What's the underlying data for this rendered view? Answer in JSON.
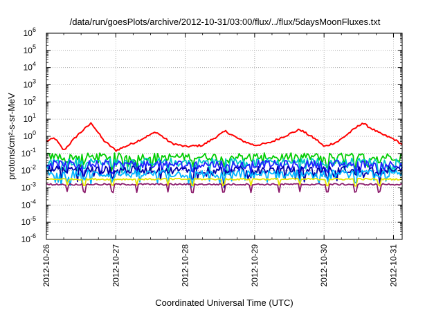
{
  "chart_data": {
    "type": "line",
    "title": "/data/run/goesPlots/archive/2012-10-31/03:00/flux/../flux/5daysMoonFluxes.txt",
    "xlabel": "Coordinated Universal Time (UTC)",
    "ylabel": "protons/cm²-s-sr-MeV",
    "y_scale": "log",
    "ylim": [
      1e-06,
      1000000.0
    ],
    "yticks": [
      {
        "exp": "-6"
      },
      {
        "exp": "-5"
      },
      {
        "exp": "-4"
      },
      {
        "exp": "-3"
      },
      {
        "exp": "-2"
      },
      {
        "exp": "-1"
      },
      {
        "exp": "0"
      },
      {
        "exp": "1"
      },
      {
        "exp": "2"
      },
      {
        "exp": "3"
      },
      {
        "exp": "4"
      },
      {
        "exp": "5"
      },
      {
        "exp": "6"
      }
    ],
    "xlim": [
      "2012-10-26T00:00",
      "2012-10-31T03:00"
    ],
    "xticks": [
      "2012-10-26",
      "2012-10-27",
      "2012-10-28",
      "2012-10-29",
      "2012-10-30",
      "2012-10-31"
    ],
    "grid": true,
    "legend": "none",
    "series": [
      {
        "color": "#ff0000",
        "kind": "peaks",
        "x_days": [
          0.0,
          0.12,
          0.25,
          0.45,
          0.65,
          0.82,
          1.0,
          1.25,
          1.58,
          1.8,
          2.0,
          2.25,
          2.58,
          2.8,
          3.0,
          3.2,
          3.65,
          3.9,
          4.0,
          4.2,
          4.55,
          4.8,
          5.0,
          5.12
        ],
        "values": [
          0.5,
          0.8,
          0.15,
          1.2,
          6.0,
          0.6,
          0.15,
          0.4,
          1.8,
          0.4,
          0.25,
          0.3,
          2.0,
          0.6,
          0.3,
          0.4,
          2.5,
          0.6,
          0.25,
          0.5,
          6.0,
          1.5,
          0.7,
          0.35
        ]
      },
      {
        "color": "#00cc00",
        "kind": "noisy",
        "base": 0.065
      },
      {
        "color": "#00c8c8",
        "kind": "noisy",
        "base": 0.033
      },
      {
        "color": "#2020ff",
        "kind": "noisy",
        "base": 0.024
      },
      {
        "color": "#0000aa",
        "kind": "noisy",
        "base": 0.011
      },
      {
        "color": "#00b4ff",
        "kind": "noisy",
        "base": 0.0065
      },
      {
        "color": "#e6e600",
        "kind": "flat",
        "base": 0.0032
      },
      {
        "color": "#8b1a6b",
        "kind": "flat",
        "base": 0.0016
      }
    ]
  }
}
